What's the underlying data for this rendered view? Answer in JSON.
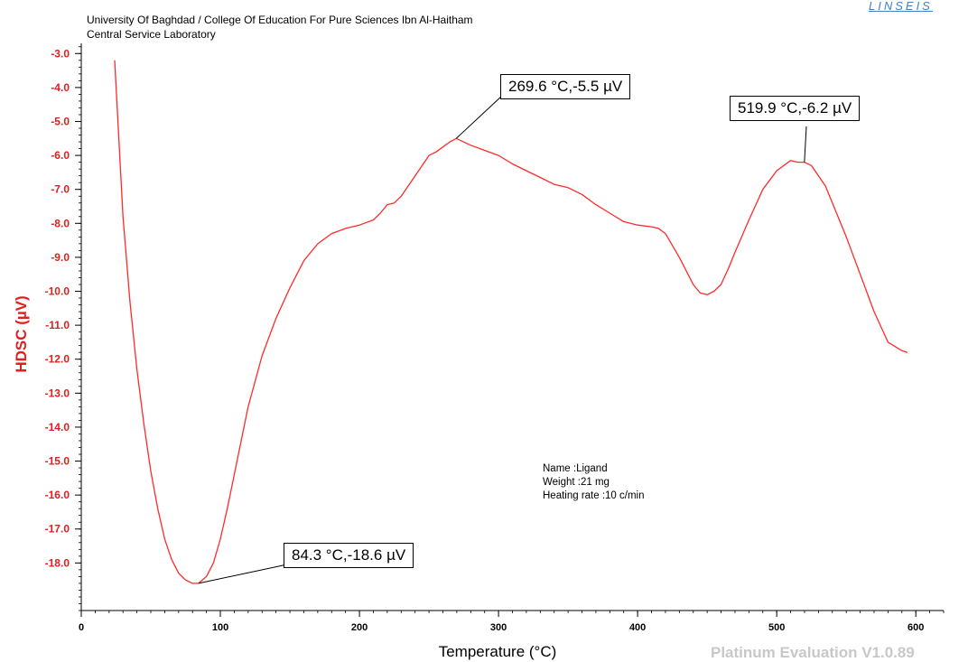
{
  "header": {
    "line1": "University Of Baghdad / College Of Education For Pure Sciences Ibn Al-Haitham",
    "line2": "Central Service Laboratory"
  },
  "brand": "LINSEIS",
  "footer": "Platinum Evaluation V1.0.89",
  "info": {
    "name": "Name :Ligand",
    "weight": "Weight :21  mg",
    "rate": "Heating rate :10 c/min"
  },
  "annotations": {
    "min": "84.3 °C,-18.6 µV",
    "peak1": "269.6 °C,-5.5 µV",
    "peak2": "519.9 °C,-6.2 µV"
  },
  "colors": {
    "curve": "#ff2a2a",
    "yaxis_text": "#e02020",
    "axis": "#000000"
  },
  "chart_data": {
    "type": "line",
    "xlabel": "Temperature (°C)",
    "ylabel": "HDSC (µV)",
    "xlim": [
      0,
      620
    ],
    "ylim": [
      -19.4,
      -2.7
    ],
    "xticks": [
      0,
      100,
      200,
      300,
      400,
      500,
      600
    ],
    "xtick_labels": [
      "0",
      "100",
      "200",
      "300",
      "400",
      "500",
      "600"
    ],
    "yticks": [
      -3,
      -4,
      -5,
      -6,
      -7,
      -8,
      -9,
      -10,
      -11,
      -12,
      -13,
      -14,
      -15,
      -16,
      -17,
      -18
    ],
    "ytick_labels": [
      "-3.0",
      "-4.0",
      "-5.0",
      "-6.0",
      "-7.0",
      "-8.0",
      "-9.0",
      "-10.0",
      "-11.0",
      "-12.0",
      "-13.0",
      "-14.0",
      "-15.0",
      "-16.0",
      "-17.0",
      "-18.0"
    ],
    "grid": false,
    "series": [
      {
        "x": [
          24,
          27,
          30,
          35,
          40,
          45,
          50,
          55,
          60,
          65,
          70,
          75,
          80,
          84.3,
          90,
          95,
          100,
          105,
          110,
          115,
          120,
          130,
          140,
          150,
          160,
          170,
          180,
          190,
          200,
          210,
          215,
          220,
          225,
          230,
          240,
          250,
          255,
          260,
          265,
          269.6,
          280,
          290,
          300,
          310,
          320,
          330,
          340,
          350,
          360,
          370,
          380,
          390,
          400,
          410,
          415,
          420,
          430,
          440,
          445,
          450,
          455,
          460,
          465,
          470,
          480,
          490,
          500,
          510,
          515,
          519.9,
          525,
          530,
          535,
          540,
          550,
          560,
          570,
          580,
          590,
          594
        ],
        "y": [
          -3.2,
          -5.5,
          -7.8,
          -10.3,
          -12.3,
          -13.9,
          -15.3,
          -16.4,
          -17.3,
          -17.9,
          -18.3,
          -18.5,
          -18.6,
          -18.6,
          -18.4,
          -18.0,
          -17.3,
          -16.4,
          -15.4,
          -14.4,
          -13.4,
          -11.9,
          -10.8,
          -9.9,
          -9.1,
          -8.6,
          -8.3,
          -8.15,
          -8.05,
          -7.9,
          -7.7,
          -7.45,
          -7.4,
          -7.2,
          -6.6,
          -6.0,
          -5.9,
          -5.75,
          -5.6,
          -5.5,
          -5.7,
          -5.85,
          -6.0,
          -6.25,
          -6.45,
          -6.65,
          -6.85,
          -6.95,
          -7.15,
          -7.45,
          -7.7,
          -7.95,
          -8.05,
          -8.1,
          -8.15,
          -8.3,
          -9.0,
          -9.8,
          -10.05,
          -10.1,
          -10.0,
          -9.8,
          -9.35,
          -8.85,
          -7.9,
          -7.0,
          -6.45,
          -6.15,
          -6.2,
          -6.2,
          -6.3,
          -6.6,
          -6.9,
          -7.4,
          -8.4,
          -9.5,
          -10.6,
          -11.5,
          -11.75,
          -11.8
        ]
      }
    ]
  }
}
